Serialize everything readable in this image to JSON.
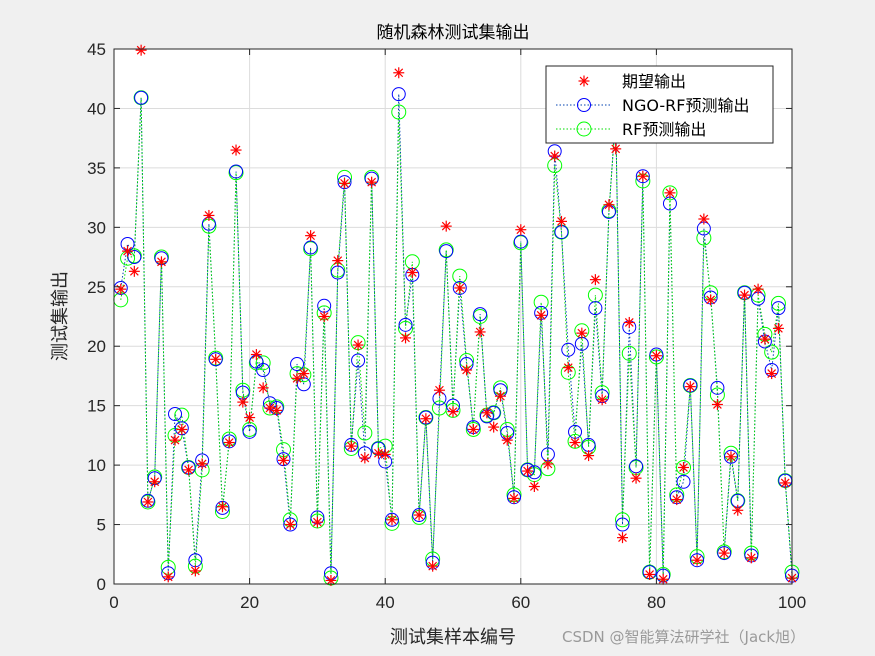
{
  "chart_data": {
    "type": "line",
    "title": "随机森林测试集输出",
    "xlabel": "测试集样本编号",
    "ylabel": "测试集输出",
    "xlim": [
      0,
      100
    ],
    "ylim": [
      0,
      45
    ],
    "xticks": [
      0,
      20,
      40,
      60,
      80,
      100
    ],
    "yticks": [
      0,
      5,
      10,
      15,
      20,
      25,
      30,
      35,
      40,
      45
    ],
    "grid": true,
    "legend_position": "top-right",
    "x": [
      1,
      2,
      3,
      4,
      5,
      6,
      7,
      8,
      9,
      10,
      11,
      12,
      13,
      14,
      15,
      16,
      17,
      18,
      19,
      20,
      21,
      22,
      23,
      24,
      25,
      26,
      27,
      28,
      29,
      30,
      31,
      32,
      33,
      34,
      35,
      36,
      37,
      38,
      39,
      40,
      41,
      42,
      43,
      44,
      45,
      46,
      47,
      48,
      49,
      50,
      51,
      52,
      53,
      54,
      55,
      56,
      57,
      58,
      59,
      60,
      61,
      62,
      63,
      64,
      65,
      66,
      67,
      68,
      69,
      70,
      71,
      72,
      73,
      74,
      75,
      76,
      77,
      78,
      79,
      80,
      81,
      82,
      83,
      84,
      85,
      86,
      87,
      88,
      89,
      90,
      91,
      92,
      93,
      94,
      95,
      96,
      97,
      98,
      99,
      100
    ],
    "series": [
      {
        "name": "期望输出",
        "color": "#ff0000",
        "marker": "asterisk",
        "line": "none",
        "values": [
          24.8,
          28.0,
          26.3,
          44.9,
          6.9,
          8.6,
          27.1,
          0.6,
          12.1,
          13.0,
          9.6,
          1.1,
          10.1,
          31.0,
          18.9,
          6.5,
          11.9,
          36.5,
          15.3,
          14.0,
          19.3,
          16.5,
          14.8,
          14.6,
          10.4,
          5.0,
          17.3,
          17.7,
          29.3,
          5.2,
          22.5,
          0.3,
          27.2,
          33.7,
          11.6,
          20.1,
          10.6,
          33.8,
          11.0,
          10.9,
          5.4,
          43.0,
          20.7,
          26.2,
          5.8,
          13.9,
          1.5,
          16.3,
          30.1,
          14.5,
          24.9,
          18.0,
          13.0,
          21.2,
          14.4,
          13.2,
          15.8,
          12.1,
          7.2,
          29.8,
          9.5,
          8.2,
          22.6,
          10.1,
          36.0,
          30.5,
          18.2,
          11.9,
          21.1,
          10.8,
          25.6,
          15.5,
          31.9,
          36.6,
          3.9,
          22.0,
          8.9,
          34.3,
          0.8,
          19.2,
          0.4,
          32.9,
          7.1,
          9.8,
          16.6,
          2.0,
          30.7,
          23.9,
          15.1,
          2.6,
          10.7,
          6.2,
          24.3,
          2.2,
          24.8,
          20.6,
          17.7,
          21.5,
          8.5,
          0.5
        ]
      },
      {
        "name": "NGO-RF预测输出",
        "color": "#0000ff",
        "marker": "circle",
        "line": "dotted",
        "values": [
          24.9,
          28.6,
          27.5,
          40.9,
          7.0,
          8.9,
          27.4,
          0.9,
          14.3,
          13.1,
          9.8,
          2.0,
          10.4,
          30.3,
          18.9,
          6.4,
          12.0,
          34.7,
          16.1,
          12.8,
          18.7,
          18.0,
          15.2,
          14.8,
          10.5,
          5.0,
          18.5,
          16.8,
          28.3,
          5.6,
          23.4,
          0.9,
          26.2,
          33.8,
          11.7,
          18.8,
          11.0,
          34.1,
          11.4,
          10.3,
          5.4,
          41.2,
          21.8,
          26.0,
          5.8,
          14.0,
          1.8,
          15.6,
          28.0,
          15.0,
          24.9,
          18.5,
          13.2,
          22.7,
          14.1,
          14.4,
          16.3,
          12.7,
          7.3,
          28.8,
          9.6,
          9.4,
          22.8,
          10.9,
          36.4,
          29.6,
          19.7,
          12.8,
          20.2,
          11.7,
          23.2,
          15.8,
          31.3,
          39.5,
          5.0,
          21.6,
          9.9,
          34.3,
          1.0,
          19.3,
          0.7,
          32.0,
          7.3,
          8.6,
          16.7,
          2.0,
          29.9,
          24.1,
          16.5,
          2.6,
          10.7,
          7.0,
          24.5,
          2.4,
          24.0,
          20.4,
          18.0,
          23.2,
          8.7,
          0.7
        ]
      },
      {
        "name": "RF预测输出",
        "color": "#00ff00",
        "marker": "circle",
        "line": "dotted",
        "values": [
          23.9,
          27.4,
          27.6,
          40.9,
          6.9,
          9.0,
          27.5,
          1.4,
          12.5,
          14.2,
          9.8,
          1.5,
          9.6,
          30.1,
          19.0,
          6.1,
          12.2,
          34.6,
          16.3,
          13.0,
          18.6,
          18.6,
          14.8,
          14.9,
          11.3,
          5.4,
          17.7,
          17.6,
          28.2,
          5.3,
          22.8,
          0.5,
          26.4,
          34.2,
          11.4,
          20.3,
          12.7,
          34.2,
          11.4,
          11.6,
          5.1,
          39.7,
          21.5,
          27.1,
          5.6,
          14.0,
          2.1,
          14.8,
          28.1,
          14.6,
          25.9,
          18.8,
          13.0,
          22.5,
          14.2,
          14.4,
          16.5,
          13.0,
          7.5,
          28.7,
          9.6,
          9.2,
          23.7,
          9.7,
          35.2,
          29.6,
          17.8,
          12.0,
          21.3,
          11.5,
          24.3,
          16.1,
          31.4,
          39.4,
          5.4,
          19.4,
          9.8,
          33.9,
          1.0,
          19.1,
          0.8,
          32.9,
          7.5,
          9.8,
          16.7,
          2.3,
          29.1,
          24.5,
          15.9,
          2.7,
          11.0,
          7.0,
          24.5,
          2.6,
          24.3,
          21.0,
          19.5,
          23.6,
          8.7,
          1.0
        ]
      }
    ]
  },
  "watermark": "CSDN @智能算法研学社（Jack旭）"
}
